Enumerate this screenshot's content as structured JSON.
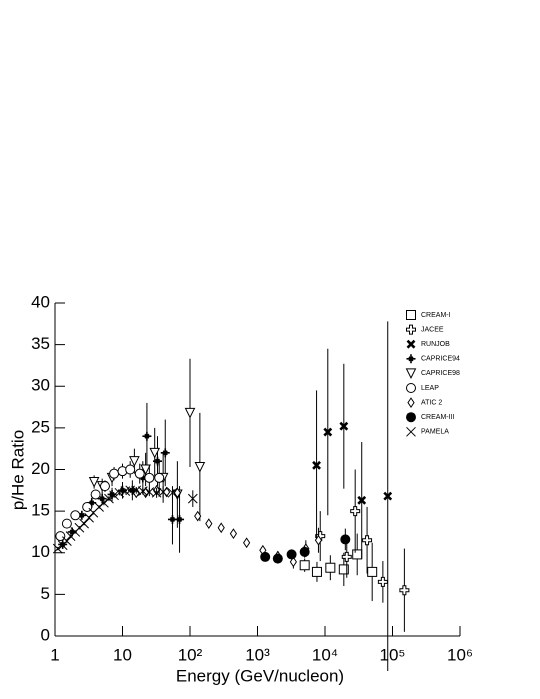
{
  "chart_data": {
    "type": "scatter",
    "xlabel": "Energy (GeV/nucleon)",
    "ylabel": "p/He Ratio",
    "xscale": "log",
    "xlim": [
      1,
      1000000
    ],
    "ylim": [
      0,
      40
    ],
    "xticks": [
      {
        "value": 1,
        "label": "1"
      },
      {
        "value": 10,
        "label": "10"
      },
      {
        "value": 100,
        "label": "10²"
      },
      {
        "value": 1000,
        "label": "10³"
      },
      {
        "value": 10000,
        "label": "10⁴"
      },
      {
        "value": 100000,
        "label": "10⁵"
      },
      {
        "value": 1000000,
        "label": "10⁶"
      }
    ],
    "yticks": [
      0,
      5,
      10,
      15,
      20,
      25,
      30,
      35,
      40
    ],
    "legend": "top-right",
    "series": [
      {
        "name": "CREAM-I",
        "marker": "square",
        "color": "#000000",
        "x": [
          5000,
          7600,
          12000,
          19000,
          30000,
          50000
        ],
        "values": [
          8.5,
          7.7,
          8.2,
          8.0,
          9.8,
          7.7
        ],
        "errors": [
          0.8,
          1.2,
          1.5,
          2.0,
          2.5,
          3.5
        ]
      },
      {
        "name": "JACEE",
        "marker": "cross",
        "color": "#000000",
        "x": [
          8500,
          21000,
          28000,
          42000,
          72000,
          150000
        ],
        "values": [
          12,
          9.5,
          15,
          11.5,
          6.5,
          5.5
        ],
        "errors": [
          3,
          2.5,
          5,
          4,
          2.5,
          5
        ]
      },
      {
        "name": "RUNJOB",
        "marker": "xbold",
        "color": "#000000",
        "x": [
          7500,
          11000,
          19000,
          35000,
          85000
        ],
        "values": [
          20.5,
          24.5,
          25.2,
          16.3,
          16.8
        ],
        "errors": [
          9,
          10,
          7.5,
          7,
          21
        ]
      },
      {
        "name": "CAPRICE94",
        "marker": "star",
        "color": "#000000",
        "x": [
          1.3,
          1.8,
          2.5,
          3.5,
          5,
          7,
          10,
          14,
          20,
          23,
          33,
          43,
          55,
          70
        ],
        "values": [
          11,
          12.5,
          14.5,
          16,
          16.5,
          17,
          17.5,
          17.5,
          19,
          24,
          21,
          22,
          14,
          14
        ],
        "errors": [
          0.4,
          0.5,
          0.5,
          0.6,
          0.7,
          0.8,
          1,
          1.2,
          2,
          4,
          3,
          4,
          3,
          4
        ]
      },
      {
        "name": "CAPRICE98",
        "marker": "tri-down",
        "color": "#000000",
        "x": [
          3.8,
          5,
          7,
          15,
          22,
          30,
          40,
          65,
          100,
          140
        ],
        "values": [
          18.5,
          18,
          19,
          21,
          20,
          22,
          19,
          17,
          26.8,
          20.3
        ],
        "errors": [
          0.8,
          0.9,
          1,
          1.5,
          2,
          3,
          3,
          4,
          6.5,
          6.5
        ]
      },
      {
        "name": "LEAP",
        "marker": "circle",
        "color": "#000000",
        "x": [
          1.2,
          1.5,
          2,
          3,
          4,
          5.5,
          7.5,
          10,
          13,
          18,
          25,
          35
        ],
        "values": [
          12,
          13.5,
          14.5,
          15.5,
          17,
          18,
          19.5,
          19.8,
          20,
          19.5,
          19,
          19
        ],
        "errors": [
          0.4,
          0.4,
          0.5,
          0.5,
          0.6,
          0.7,
          0.8,
          0.9,
          1,
          1.2,
          1.5,
          2
        ]
      },
      {
        "name": "ATIC 2",
        "marker": "diamond",
        "color": "#000000",
        "x": [
          16,
          22,
          32,
          45,
          65,
          130,
          190,
          290,
          440,
          690,
          1200,
          2000,
          3400,
          5200,
          8000
        ],
        "values": [
          17.2,
          17.2,
          17.5,
          17.3,
          17.2,
          14.4,
          13.5,
          13,
          12.3,
          11.2,
          10.3,
          9.6,
          8.9,
          10.5,
          11.5
        ],
        "errors": [
          0.3,
          0.3,
          0.3,
          0.3,
          0.3,
          0.3,
          0.3,
          0.3,
          0.3,
          0.4,
          0.5,
          0.6,
          0.8,
          1,
          1.5
        ]
      },
      {
        "name": "CREAM-III",
        "marker": "dot",
        "color": "#000000",
        "x": [
          1300,
          2000,
          3200,
          5000,
          20000
        ],
        "values": [
          9.5,
          9.3,
          9.8,
          10.1,
          11.6
        ],
        "errors": [
          0.4,
          0.4,
          0.6,
          0.7,
          1.3
        ]
      },
      {
        "name": "PAMELA",
        "marker": "x",
        "color": "#000000",
        "x": [
          1.1,
          1.3,
          1.5,
          1.7,
          2,
          2.3,
          2.7,
          3.2,
          3.7,
          4.5,
          5.3,
          6.3,
          7.5,
          9,
          11,
          13,
          16,
          20,
          25,
          32,
          40,
          55,
          110
        ],
        "values": [
          10.5,
          10.9,
          11.4,
          12,
          12.5,
          13,
          13.5,
          14.2,
          14.8,
          15.5,
          16,
          16.5,
          16.9,
          17.2,
          17.4,
          17.5,
          17.5,
          17.4,
          17.3,
          17.2,
          17.3,
          17.2,
          16.5
        ],
        "errors": [
          0.2,
          0.2,
          0.2,
          0.2,
          0.2,
          0.2,
          0.2,
          0.2,
          0.2,
          0.2,
          0.3,
          0.3,
          0.3,
          0.3,
          0.3,
          0.3,
          0.4,
          0.4,
          0.5,
          0.6,
          0.7,
          0.8,
          1
        ]
      }
    ]
  }
}
